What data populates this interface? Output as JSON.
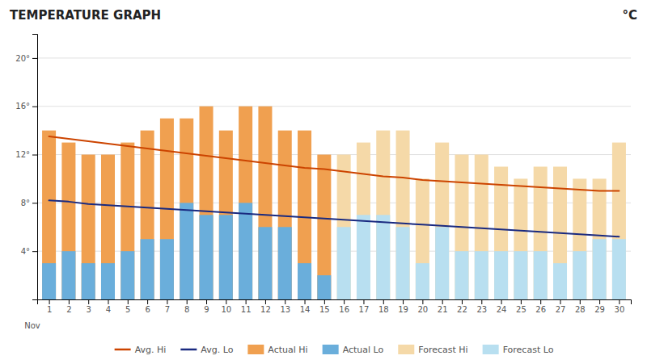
{
  "chart_data": {
    "type": "bar",
    "title": "TEMPERATURE GRAPH",
    "ylabel": "°C",
    "x": [
      1,
      2,
      3,
      4,
      5,
      6,
      7,
      8,
      9,
      10,
      11,
      12,
      13,
      14,
      15,
      16,
      17,
      18,
      19,
      20,
      21,
      22,
      23,
      24,
      25,
      26,
      27,
      28,
      29,
      30
    ],
    "xlim": [
      0.4,
      30.6
    ],
    "xticks": [
      1,
      2,
      3,
      4,
      5,
      6,
      7,
      8,
      9,
      10,
      11,
      12,
      13,
      14,
      15,
      16,
      17,
      18,
      19,
      20,
      21,
      22,
      23,
      24,
      25,
      26,
      27,
      28,
      29,
      30
    ],
    "ylim": [
      0,
      22
    ],
    "yticks": [
      {
        "value": 4,
        "label": "4°"
      },
      {
        "value": 8,
        "label": "8°"
      },
      {
        "value": 12,
        "label": "12°"
      },
      {
        "value": 16,
        "label": "16°"
      },
      {
        "value": 20,
        "label": "20°"
      }
    ],
    "grid": true,
    "legend": "bottom",
    "annotations": [
      {
        "text": "Nov"
      }
    ],
    "series": [
      {
        "name": "Avg. Hi",
        "type": "line",
        "color": "#cc4400",
        "values": [
          13.5,
          13.3,
          13.1,
          12.9,
          12.7,
          12.5,
          12.3,
          12.1,
          11.9,
          11.7,
          11.5,
          11.3,
          11.1,
          10.9,
          10.8,
          10.6,
          10.4,
          10.2,
          10.1,
          9.9,
          9.8,
          9.7,
          9.6,
          9.5,
          9.4,
          9.3,
          9.2,
          9.1,
          9.0,
          9.0
        ]
      },
      {
        "name": "Avg. Lo",
        "type": "line",
        "color": "#1a2a80",
        "values": [
          8.2,
          8.1,
          7.9,
          7.8,
          7.7,
          7.6,
          7.5,
          7.4,
          7.3,
          7.2,
          7.1,
          7.0,
          6.9,
          6.8,
          6.7,
          6.6,
          6.5,
          6.4,
          6.3,
          6.2,
          6.1,
          6.0,
          5.9,
          5.8,
          5.7,
          5.6,
          5.5,
          5.4,
          5.3,
          5.2
        ]
      },
      {
        "name": "Actual Hi",
        "type": "bar",
        "color": "#f0a050",
        "values": [
          14,
          13,
          12,
          12,
          13,
          14,
          15,
          15,
          16,
          14,
          16,
          16,
          14,
          14,
          12,
          null,
          null,
          null,
          null,
          null,
          null,
          null,
          null,
          null,
          null,
          null,
          null,
          null,
          null,
          null
        ]
      },
      {
        "name": "Actual Lo",
        "type": "bar",
        "color": "#6aaedb",
        "values": [
          3,
          4,
          3,
          3,
          4,
          5,
          5,
          8,
          7,
          7,
          8,
          6,
          6,
          3,
          2,
          null,
          null,
          null,
          null,
          null,
          null,
          null,
          null,
          null,
          null,
          null,
          null,
          null,
          null,
          null
        ]
      },
      {
        "name": "Forecast Hi",
        "type": "bar",
        "color": "#f5d9a8",
        "values": [
          null,
          null,
          null,
          null,
          null,
          null,
          null,
          null,
          null,
          null,
          null,
          null,
          null,
          null,
          null,
          12,
          13,
          14,
          14,
          10,
          13,
          12,
          12,
          11,
          10,
          11,
          11,
          10,
          10,
          13
        ]
      },
      {
        "name": "Forecast Lo",
        "type": "bar",
        "color": "#b8dff0",
        "values": [
          null,
          null,
          null,
          null,
          null,
          null,
          null,
          null,
          null,
          null,
          null,
          null,
          null,
          null,
          null,
          6,
          7,
          7,
          6,
          3,
          6,
          4,
          4,
          4,
          4,
          4,
          3,
          4,
          5,
          5
        ]
      }
    ]
  }
}
